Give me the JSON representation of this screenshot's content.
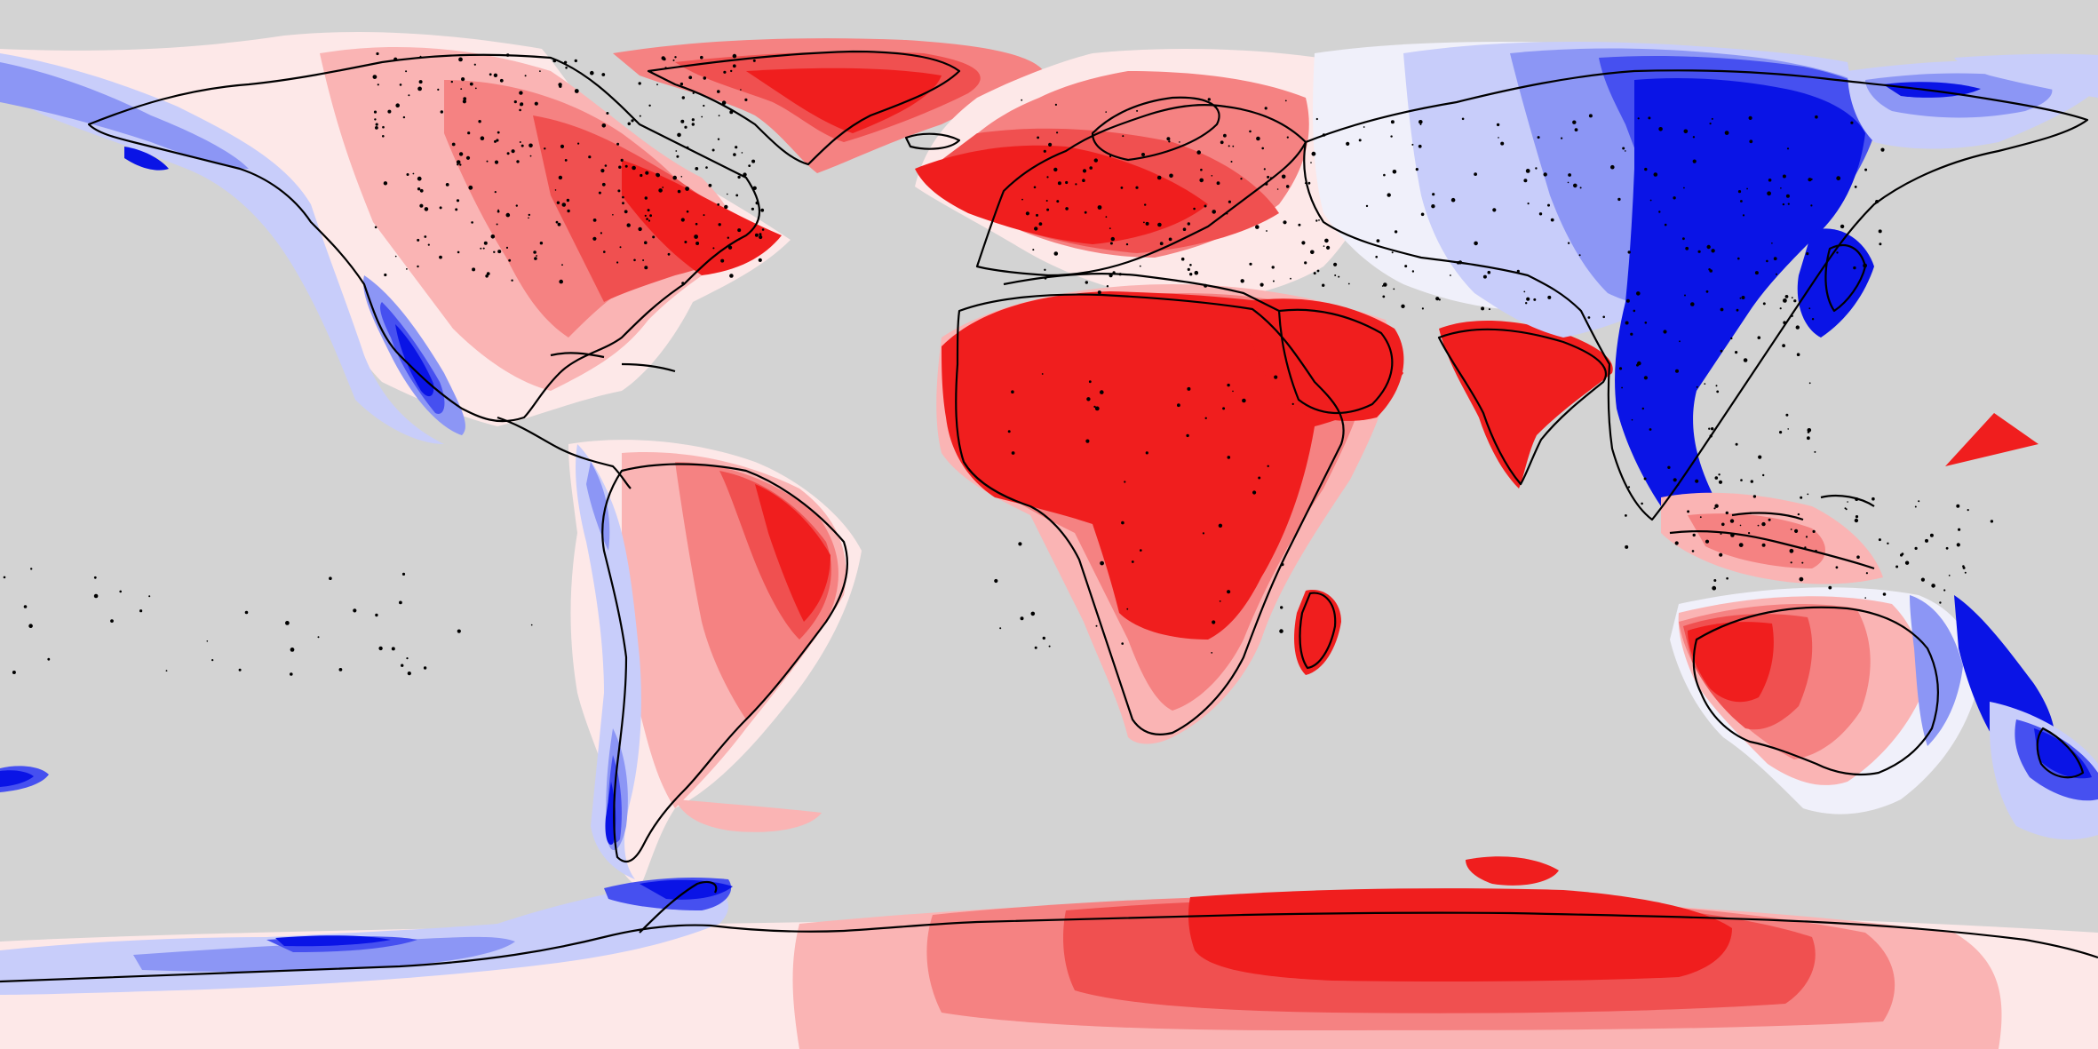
{
  "map": {
    "projection": "equirectangular",
    "background_color": "#d3d3d3",
    "coastline_color": "#000000",
    "color_scale": {
      "type": "diverging",
      "colors": [
        "#0a14e6",
        "#4650f0",
        "#8c96f5",
        "#c8cdfa",
        "#f0f0fa",
        "#ffe6e6",
        "#fab4b4",
        "#f58282",
        "#f05050",
        "#f01e1e"
      ]
    },
    "ocean_masked": true,
    "labels": []
  }
}
